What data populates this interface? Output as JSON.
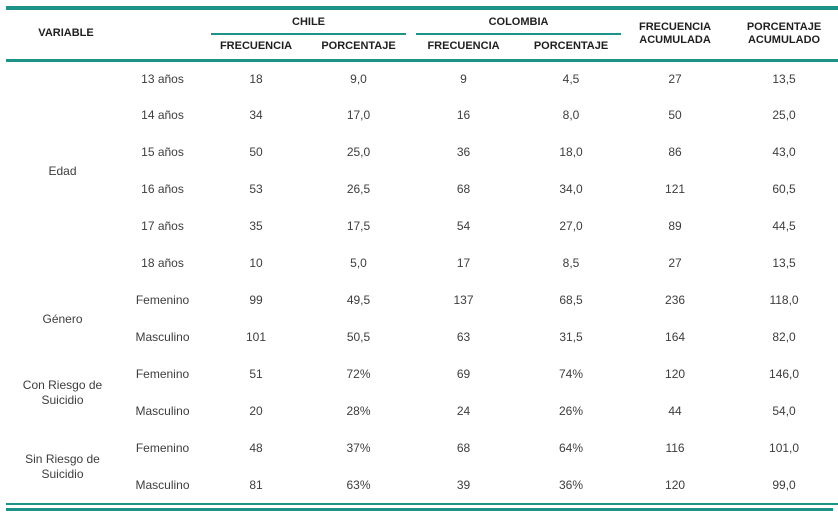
{
  "colors": {
    "accent": "#1d9287",
    "header_text": "#1f1f1f",
    "body_text": "#3d3d3d"
  },
  "table": {
    "headers": {
      "variable": "VARIABLE",
      "chile": "CHILE",
      "colombia": "COLOMBIA",
      "frecuencia": "FRECUENCIA",
      "porcentaje": "PORCENTAJE",
      "frecuencia_acumulada": "FRECUENCIA ACUMULADA",
      "porcentaje_acumulado": "PORCENTAJE ACUMULADO"
    },
    "groups": [
      {
        "label": "Edad",
        "rows": [
          {
            "category": "13 años",
            "values": [
              "18",
              "9,0",
              "9",
              "4,5",
              "27",
              "13,5"
            ]
          },
          {
            "category": "14 años",
            "values": [
              "34",
              "17,0",
              "16",
              "8,0",
              "50",
              "25,0"
            ]
          },
          {
            "category": "15 años",
            "values": [
              "50",
              "25,0",
              "36",
              "18,0",
              "86",
              "43,0"
            ]
          },
          {
            "category": "16 años",
            "values": [
              "53",
              "26,5",
              "68",
              "34,0",
              "121",
              "60,5"
            ]
          },
          {
            "category": "17 años",
            "values": [
              "35",
              "17,5",
              "54",
              "27,0",
              "89",
              "44,5"
            ]
          },
          {
            "category": "18 años",
            "values": [
              "10",
              "5,0",
              "17",
              "8,5",
              "27",
              "13,5"
            ]
          }
        ]
      },
      {
        "label": "Género",
        "rows": [
          {
            "category": "Femenino",
            "values": [
              "99",
              "49,5",
              "137",
              "68,5",
              "236",
              "118,0"
            ]
          },
          {
            "category": "Masculino",
            "values": [
              "101",
              "50,5",
              "63",
              "31,5",
              "164",
              "82,0"
            ]
          }
        ]
      },
      {
        "label": "Con Riesgo de Suicidio",
        "rows": [
          {
            "category": "Femenino",
            "values": [
              "51",
              "72%",
              "69",
              "74%",
              "120",
              "146,0"
            ]
          },
          {
            "category": "Masculino",
            "values": [
              "20",
              "28%",
              "24",
              "26%",
              "44",
              "54,0"
            ]
          }
        ]
      },
      {
        "label": "Sin Riesgo de Suicidio",
        "rows": [
          {
            "category": "Femenino",
            "values": [
              "48",
              "37%",
              "68",
              "64%",
              "116",
              "101,0"
            ]
          },
          {
            "category": "Masculino",
            "values": [
              "81",
              "63%",
              "39",
              "36%",
              "120",
              "99,0"
            ]
          }
        ]
      }
    ]
  }
}
